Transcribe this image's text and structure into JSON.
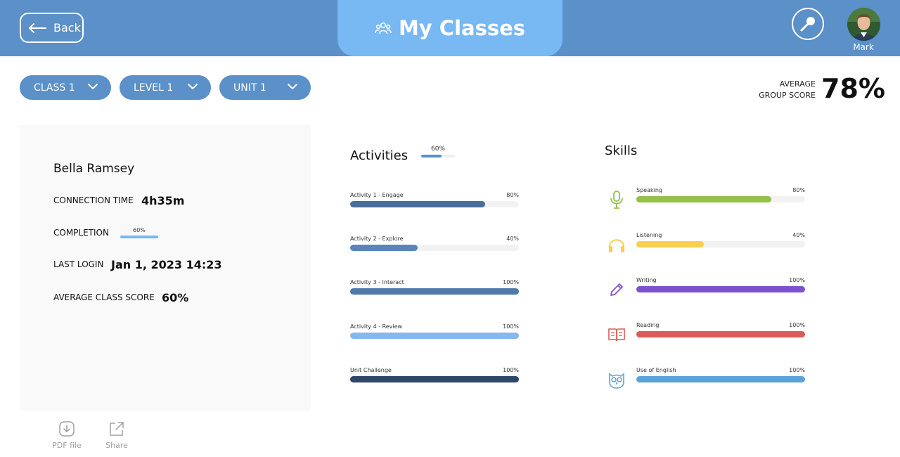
{
  "header": {
    "back_label": "Back",
    "title": "My Classes",
    "user_name": "Mark"
  },
  "filters": [
    {
      "label": "CLASS 1"
    },
    {
      "label": "LEVEL 1"
    },
    {
      "label": "UNIT 1"
    }
  ],
  "average": {
    "label_line1": "AVERAGE",
    "label_line2": "GROUP SCORE",
    "value": "78%"
  },
  "student": {
    "name": "Bella Ramsey",
    "connection_label": "CONNECTION TIME",
    "connection_value": "4h35m",
    "completion_label": "COMPLETION",
    "completion_pct": "60%",
    "completion_value": 0.6,
    "last_login_label": "LAST LOGIN",
    "last_login_value": "Jan 1, 2023 14:23",
    "avg_score_label": "AVERAGE CLASS SCORE",
    "avg_score_value": "60%"
  },
  "actions": {
    "pdf_label": "PDF file",
    "share_label": "Share"
  },
  "activities": {
    "title": "Activities",
    "overall_pct": "60%",
    "overall_value": 0.6,
    "items": [
      {
        "label": "Activity 1 - Engage",
        "pct": "80%",
        "value": 0.8,
        "color": "#4a6d99"
      },
      {
        "label": "Activity 2 - Explore",
        "pct": "40%",
        "value": 0.4,
        "color": "#5b85ba"
      },
      {
        "label": "Activity 3 - Interact",
        "pct": "100%",
        "value": 1.0,
        "color": "#5078a8"
      },
      {
        "label": "Activity 4 - Review",
        "pct": "100%",
        "value": 1.0,
        "color": "#86b7ee"
      },
      {
        "label": "Unit Challenge",
        "pct": "100%",
        "value": 1.0,
        "color": "#2e4667"
      }
    ]
  },
  "skills": {
    "title": "Skills",
    "items": [
      {
        "label": "Speaking",
        "pct": "80%",
        "value": 0.8,
        "color": "#95c04c",
        "icon": "microphone-icon"
      },
      {
        "label": "Listening",
        "pct": "40%",
        "value": 0.4,
        "color": "#f9d04d",
        "icon": "headphones-icon"
      },
      {
        "label": "Writing",
        "pct": "100%",
        "value": 1.0,
        "color": "#7d52cf",
        "icon": "pencil-icon"
      },
      {
        "label": "Reading",
        "pct": "100%",
        "value": 1.0,
        "color": "#dc5a59",
        "icon": "book-icon"
      },
      {
        "label": "Use of English",
        "pct": "100%",
        "value": 1.0,
        "color": "#5aa3d8",
        "icon": "owl-icon"
      }
    ]
  },
  "colors": {
    "header_bg": "#5b90c8",
    "title_tab_bg": "#78b8f3",
    "filter_bg": "#5b90c8"
  }
}
